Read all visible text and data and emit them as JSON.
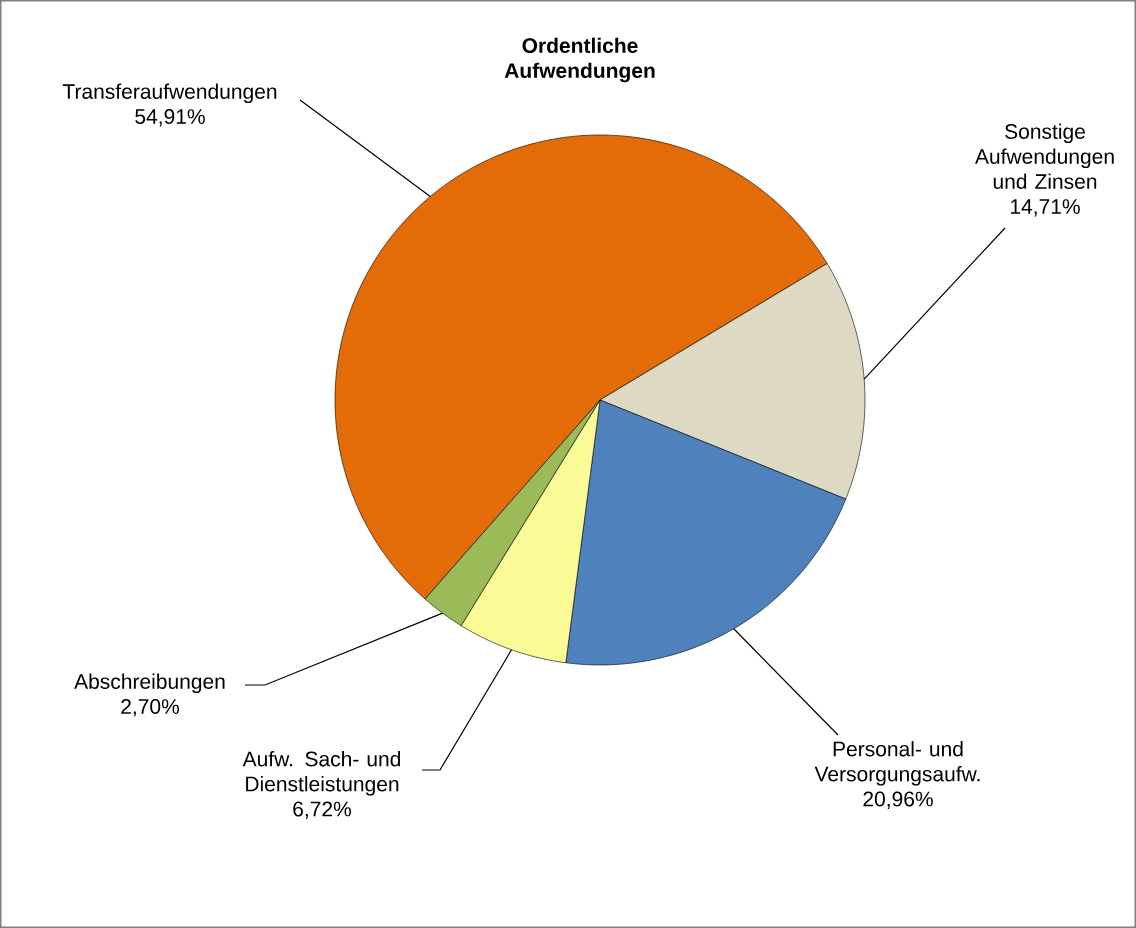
{
  "chart_data": {
    "type": "pie",
    "title": "Ordentliche Aufwendungen",
    "categories": [
      "Transferaufwendungen",
      "Sonstige Aufwendungen und Zinsen",
      "Personal- und Versorgungsaufw.",
      "Aufw. Sach- und Dienstleistungen",
      "Abschreibungen"
    ],
    "values": [
      54.91,
      14.71,
      20.96,
      6.72,
      2.7
    ],
    "colors": [
      "#e36c09",
      "#ddd9c3",
      "#4f81bd",
      "#fafa96",
      "#9bbb59"
    ],
    "value_labels": [
      "54,91%",
      "14,71%",
      "20,96%",
      "6,72%",
      "2,70%"
    ]
  }
}
